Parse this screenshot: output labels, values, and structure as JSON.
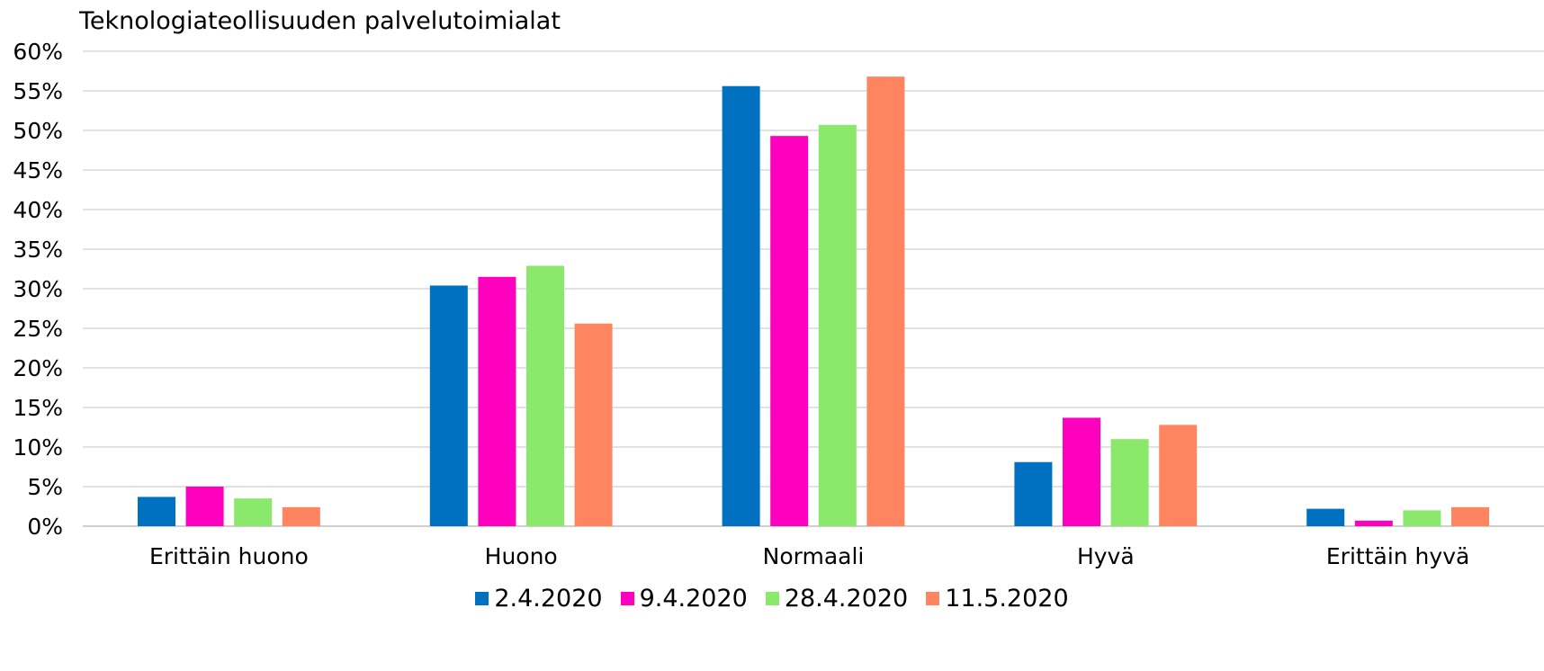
{
  "chart_data": {
    "type": "bar",
    "title": "Teknologiateollisuuden palvelutoimialat",
    "xlabel": "",
    "ylabel": "",
    "ylim": [
      0,
      60
    ],
    "yticks": [
      "0%",
      "5%",
      "10%",
      "15%",
      "20%",
      "25%",
      "30%",
      "35%",
      "40%",
      "45%",
      "50%",
      "55%",
      "60%"
    ],
    "categories": [
      "Erittäin huono",
      "Huono",
      "Normaali",
      "Hyvä",
      "Erittäin hyvä"
    ],
    "series": [
      {
        "name": "2.4.2020",
        "color": "#0070c0",
        "values": [
          3.7,
          30.4,
          55.6,
          8.1,
          2.2
        ]
      },
      {
        "name": "9.4.2020",
        "color": "#ff00bf",
        "values": [
          5.0,
          31.5,
          49.3,
          13.7,
          0.7
        ]
      },
      {
        "name": "28.4.2020",
        "color": "#8ae86a",
        "values": [
          3.5,
          32.9,
          50.7,
          11.0,
          2.0
        ]
      },
      {
        "name": "11.5.2020",
        "color": "#ff8560",
        "values": [
          2.4,
          25.6,
          56.8,
          12.8,
          2.4
        ]
      }
    ],
    "grid": true,
    "legend_position": "bottom"
  }
}
